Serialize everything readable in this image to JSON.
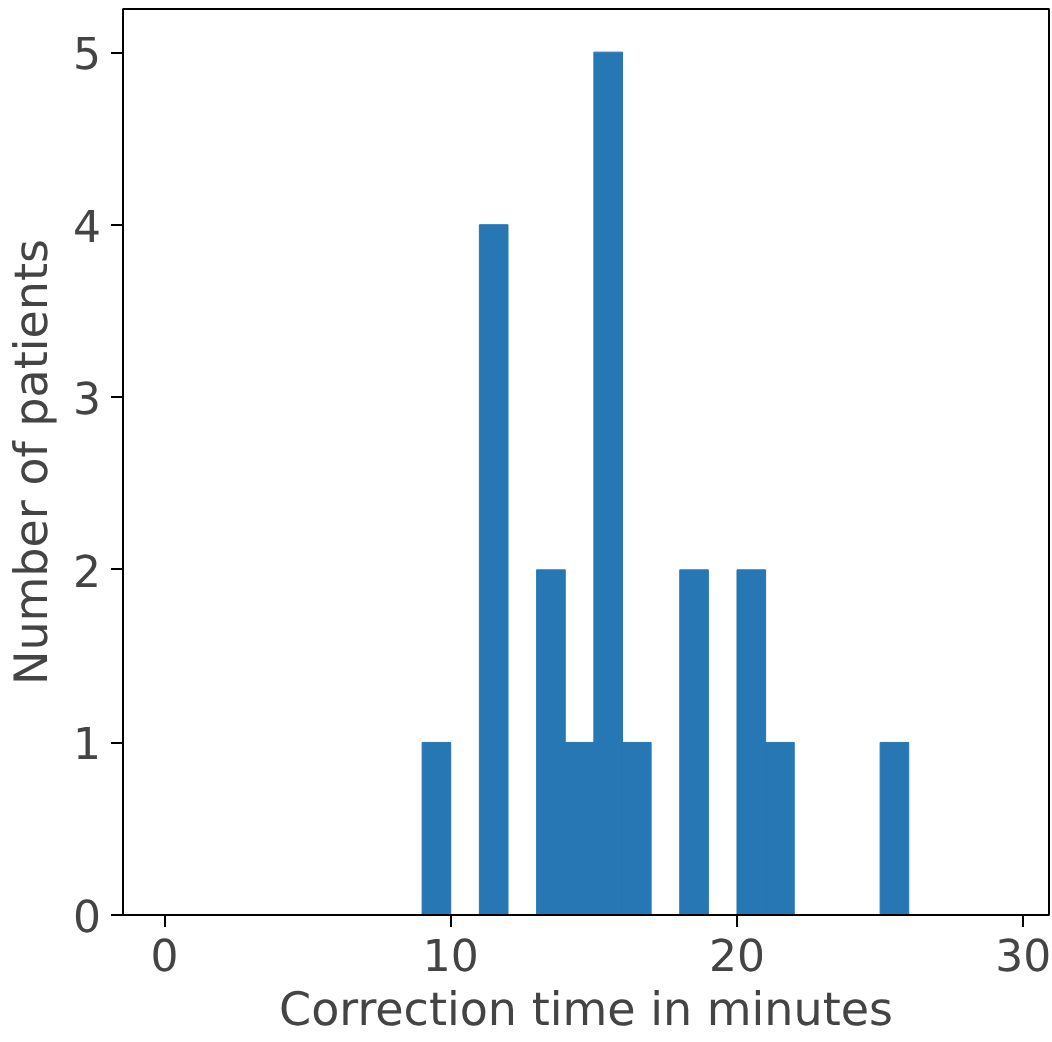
{
  "chart_data": {
    "type": "histogram",
    "xlabel": "Correction time in minutes",
    "ylabel": "Number of patients",
    "bins": [
      9,
      10,
      11,
      12,
      13,
      14,
      15,
      16,
      17,
      18,
      19,
      20,
      21,
      22,
      23,
      24,
      25,
      26
    ],
    "values": [
      1,
      0,
      4,
      0,
      2,
      1,
      5,
      1,
      0,
      2,
      0,
      2,
      1,
      0,
      0,
      0,
      1
    ],
    "color": "#2677b4",
    "xlim": [
      -1.45,
      30.9
    ],
    "ylim": [
      0,
      5.25
    ],
    "xticks": [
      0,
      10,
      20,
      30
    ],
    "yticks": [
      0,
      1,
      2,
      3,
      4,
      5
    ],
    "grid": false
  }
}
